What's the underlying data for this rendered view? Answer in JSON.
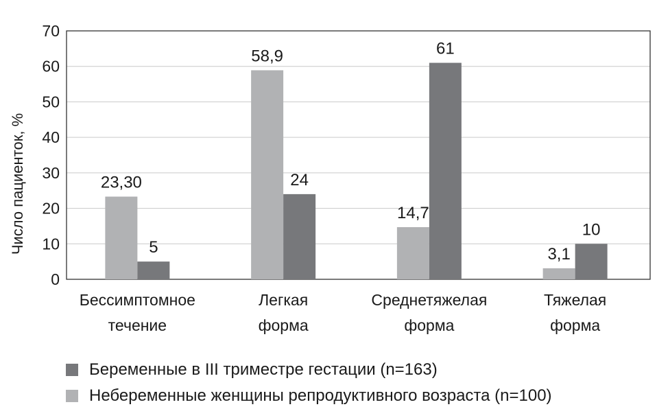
{
  "chart_data": {
    "type": "bar",
    "categories": [
      [
        "Бессимптомное",
        "течение"
      ],
      [
        "Легкая",
        "форма"
      ],
      [
        "Среднетяжелая",
        "форма"
      ],
      [
        "Тяжелая",
        "форма"
      ]
    ],
    "series": [
      {
        "name": "Небеременные женщины репродуктивного возраста (n=100)",
        "color": "#b1b2b4",
        "values": [
          23.3,
          58.9,
          14.7,
          3.1
        ],
        "labels": [
          "23,30",
          "58,9",
          "14,7",
          "3,1"
        ]
      },
      {
        "name": "Беременные в III триместре гестации (n=163)",
        "color": "#77787b",
        "values": [
          5,
          24,
          61,
          10
        ],
        "labels": [
          "5",
          "24",
          "61",
          "10"
        ]
      }
    ],
    "ylabel": "Число пациенток, %",
    "ylim": [
      0,
      70
    ],
    "yticks": [
      0,
      10,
      20,
      30,
      40,
      50,
      60,
      70
    ],
    "grid": true,
    "legend_position": "bottom",
    "legend_order": [
      1,
      0
    ]
  }
}
